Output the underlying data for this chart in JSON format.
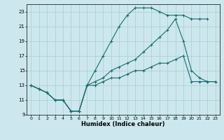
{
  "xlabel": "Humidex (Indice chaleur)",
  "bg_color": "#cce8ee",
  "grid_color": "#aacccc",
  "line_color": "#1a6b6b",
  "xlim": [
    -0.5,
    23.5
  ],
  "ylim": [
    9,
    24
  ],
  "yticks": [
    9,
    11,
    13,
    15,
    17,
    19,
    21,
    23
  ],
  "xticks": [
    0,
    1,
    2,
    3,
    4,
    5,
    6,
    7,
    8,
    9,
    10,
    11,
    12,
    13,
    14,
    15,
    16,
    17,
    18,
    19,
    20,
    21,
    22,
    23
  ],
  "line_top_x": [
    0,
    1,
    2,
    3,
    4,
    5,
    6,
    7,
    8,
    9,
    10,
    11,
    12,
    13,
    14,
    15,
    16,
    17,
    18,
    19,
    20,
    21,
    22
  ],
  "line_top_y": [
    13,
    12.5,
    12,
    11,
    11,
    9.5,
    9.5,
    13,
    15,
    17,
    19,
    21,
    22.5,
    23.5,
    23.5,
    23.5,
    23,
    22.5,
    22.5,
    22.5,
    22,
    22,
    22
  ],
  "line_mid_x": [
    0,
    1,
    2,
    3,
    4,
    5,
    6,
    7,
    8,
    9,
    10,
    11,
    12,
    13,
    14,
    15,
    16,
    17,
    18,
    19,
    20,
    21,
    22,
    23
  ],
  "line_mid_y": [
    13,
    12.5,
    12,
    11,
    11,
    9.5,
    9.5,
    13,
    13.5,
    14,
    15,
    15.5,
    16,
    16.5,
    17.5,
    18.5,
    19.5,
    20.5,
    22,
    19,
    15,
    14,
    13.5,
    13.5
  ],
  "line_bot_x": [
    0,
    1,
    2,
    3,
    4,
    5,
    6,
    7,
    8,
    9,
    10,
    11,
    12,
    13,
    14,
    15,
    16,
    17,
    18,
    19,
    20,
    21,
    22,
    23
  ],
  "line_bot_y": [
    13,
    12.5,
    12,
    11,
    11,
    9.5,
    9.5,
    13,
    13,
    13.5,
    14,
    14,
    14.5,
    15,
    15,
    15.5,
    16,
    16,
    16.5,
    17,
    13.5,
    13.5,
    13.5,
    13.5
  ]
}
